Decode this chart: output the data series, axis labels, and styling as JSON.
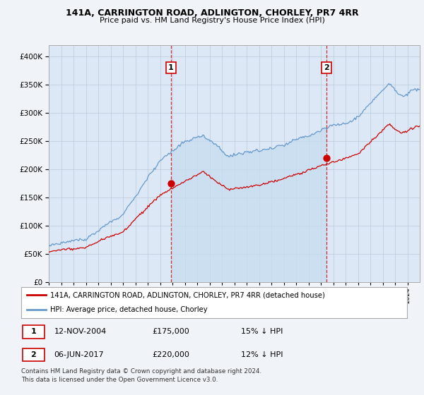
{
  "title1": "141A, CARRINGTON ROAD, ADLINGTON, CHORLEY, PR7 4RR",
  "title2": "Price paid vs. HM Land Registry's House Price Index (HPI)",
  "legend_label_red": "141A, CARRINGTON ROAD, ADLINGTON, CHORLEY, PR7 4RR (detached house)",
  "legend_label_blue": "HPI: Average price, detached house, Chorley",
  "annotation1": {
    "num": "1",
    "date": "12-NOV-2004",
    "price": "£175,000",
    "pct": "15% ↓ HPI"
  },
  "annotation2": {
    "num": "2",
    "date": "06-JUN-2017",
    "price": "£220,000",
    "pct": "12% ↓ HPI"
  },
  "footer": "Contains HM Land Registry data © Crown copyright and database right 2024.\nThis data is licensed under the Open Government Licence v3.0.",
  "ylim_min": 0,
  "ylim_max": 420000,
  "chart_bg": "#dce8f5",
  "fig_bg": "#f0f4f8",
  "red_color": "#cc0000",
  "blue_color": "#6699cc",
  "blue_fill": "#c8ddf0",
  "vline_color": "#cc0000",
  "sale1_year": 2004.87,
  "sale1_price": 175000,
  "sale2_year": 2017.43,
  "sale2_price": 220000,
  "xmin": 1995,
  "xmax": 2025
}
